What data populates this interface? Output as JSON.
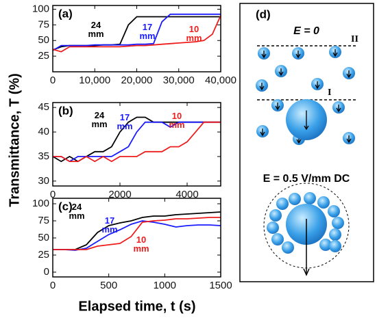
{
  "chart_data": [
    {
      "type": "line",
      "label": "(a)",
      "x": [
        0,
        2000,
        4000,
        6000,
        8000,
        10000,
        12000,
        14000,
        16000,
        18000,
        20000,
        22000,
        24000,
        26000,
        28000,
        30000,
        32000,
        34000,
        36000,
        38000,
        40000
      ],
      "series": [
        {
          "name": "24 mm",
          "color": "#000000",
          "values": [
            35,
            40,
            42,
            42,
            42,
            42,
            43,
            43,
            44,
            75,
            88,
            88,
            88,
            88,
            88,
            88,
            88,
            88,
            88,
            88,
            88
          ]
        },
        {
          "name": "17 mm",
          "color": "#1a1aff",
          "values": [
            34,
            42,
            42,
            42,
            42,
            43,
            43,
            43,
            43,
            43,
            44,
            44,
            45,
            80,
            92,
            92,
            92,
            92,
            92,
            92,
            92
          ]
        },
        {
          "name": "10 mm",
          "color": "#ee1c1c",
          "values": [
            36,
            32,
            40,
            40,
            40,
            40,
            40,
            40,
            40,
            41,
            42,
            42,
            43,
            44,
            45,
            46,
            47,
            48,
            50,
            60,
            90
          ]
        }
      ],
      "xlim": [
        0,
        40000
      ],
      "xticks": [
        0,
        {
          "value": 10000,
          "label": "10,000"
        },
        {
          "value": 20000,
          "label": "20,000"
        },
        {
          "value": 30000,
          "label": "30,000"
        },
        {
          "value": 40000,
          "label": "40,000"
        }
      ],
      "ylim": [
        0,
        106
      ],
      "yticks": [
        25,
        50,
        75,
        100
      ]
    },
    {
      "type": "line",
      "label": "(b)",
      "x": [
        0,
        250,
        500,
        750,
        1000,
        1250,
        1500,
        1750,
        2000,
        2250,
        2500,
        2750,
        3000,
        3250,
        3500,
        3750,
        4000,
        4250,
        4500,
        4750,
        5000
      ],
      "series": [
        {
          "name": "24 mm",
          "color": "#000000",
          "values": [
            35,
            34,
            35,
            34,
            35,
            36,
            36,
            37,
            40,
            42,
            43,
            43,
            42,
            42,
            42,
            42,
            42,
            42,
            42,
            42,
            42
          ]
        },
        {
          "name": "17 mm",
          "color": "#1a1aff",
          "values": [
            35,
            35,
            34,
            35,
            35,
            35,
            35,
            35,
            36,
            37,
            40,
            42,
            42,
            42,
            41,
            42,
            42,
            42,
            42,
            42,
            42
          ]
        },
        {
          "name": "10 mm",
          "color": "#ee1c1c",
          "values": [
            35,
            35,
            34,
            34,
            35,
            34,
            35,
            34,
            35,
            35,
            35,
            36,
            36,
            36,
            37,
            37,
            38,
            40,
            42,
            42,
            42
          ]
        }
      ],
      "xlim": [
        0,
        5000
      ],
      "xticks": [
        0,
        2000,
        4000
      ],
      "ylim": [
        29,
        46
      ],
      "yticks": [
        30,
        35,
        40,
        45
      ]
    },
    {
      "type": "line",
      "label": "(c)",
      "x": [
        0,
        100,
        200,
        300,
        400,
        500,
        600,
        700,
        800,
        900,
        1000,
        1100,
        1200,
        1300,
        1400,
        1500
      ],
      "series": [
        {
          "name": "24 mm",
          "color": "#000000",
          "values": [
            33,
            33,
            33,
            40,
            58,
            68,
            72,
            75,
            80,
            82,
            82,
            84,
            85,
            86,
            87,
            88
          ]
        },
        {
          "name": "17 mm",
          "color": "#1a1aff",
          "values": [
            33,
            33,
            32,
            35,
            45,
            55,
            62,
            70,
            75,
            73,
            70,
            66,
            68,
            69,
            69,
            68
          ]
        },
        {
          "name": "10 mm",
          "color": "#ee1c1c",
          "values": [
            33,
            33,
            33,
            33,
            38,
            40,
            42,
            52,
            73,
            75,
            76,
            78,
            78,
            79,
            80,
            80
          ]
        }
      ],
      "xlim": [
        0,
        1500
      ],
      "xticks": [
        0,
        500,
        1000,
        1500
      ],
      "ylim": [
        -7,
        108
      ],
      "yticks": [
        0,
        25,
        50,
        75,
        100
      ],
      "xlabel": "Elapsed time, t (s)",
      "ylabel": "Transmittance, T (%)"
    }
  ],
  "diagram": {
    "label": "(d)",
    "field_off": "E = 0",
    "line_upper": "II",
    "line_lower": "I",
    "field_on": "E = 0.5 V/mm DC"
  }
}
